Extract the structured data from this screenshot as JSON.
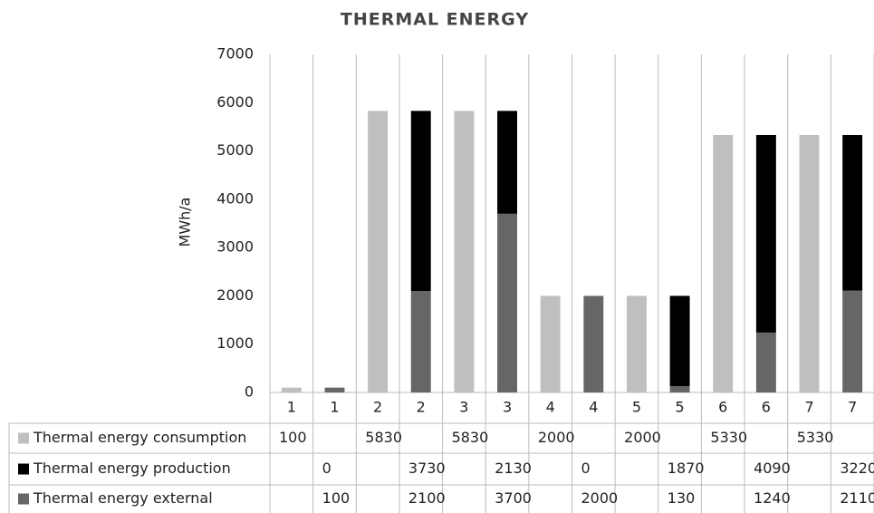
{
  "chart_data": {
    "type": "bar",
    "stacked": true,
    "title": "THERMAL ENERGY",
    "y_label": "MWh/a",
    "categories": [
      "1",
      "1",
      "2",
      "2",
      "3",
      "3",
      "4",
      "4",
      "5",
      "5",
      "6",
      "6",
      "7",
      "7"
    ],
    "series": [
      {
        "name": "Thermal energy consumption",
        "color": "#bfbfbf",
        "values": [
          100,
          null,
          5830,
          null,
          5830,
          null,
          2000,
          null,
          2000,
          null,
          5330,
          null,
          5330,
          null
        ]
      },
      {
        "name": "Thermal energy production",
        "color": "#000000",
        "values": [
          null,
          0,
          null,
          3730,
          null,
          2130,
          null,
          0,
          null,
          1870,
          null,
          4090,
          null,
          3220
        ]
      },
      {
        "name": "Thermal energy external",
        "color": "#666666",
        "values": [
          null,
          100,
          null,
          2100,
          null,
          3700,
          null,
          2000,
          null,
          130,
          null,
          1240,
          null,
          2110
        ]
      }
    ],
    "ylim": [
      0,
      7000
    ],
    "yticks": [
      0,
      1000,
      2000,
      3000,
      4000,
      5000,
      6000,
      7000
    ]
  }
}
